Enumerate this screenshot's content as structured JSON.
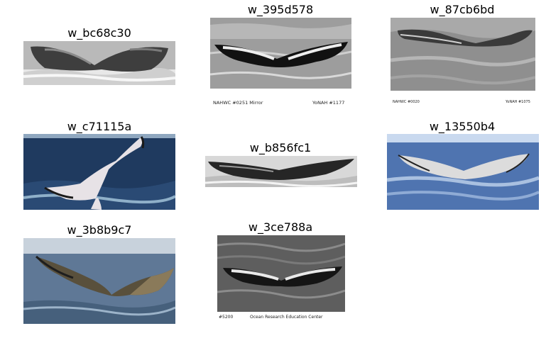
{
  "figure": {
    "panels": [
      {
        "id": "w_bc68c30",
        "title": "w_bc68c30",
        "palette": "grayscale",
        "captions": []
      },
      {
        "id": "w_395d578",
        "title": "w_395d578",
        "palette": "grayscale",
        "captions": [
          "NAHWC #0251  Mirror",
          "YoNAH #1177"
        ]
      },
      {
        "id": "w_87cb6bd",
        "title": "w_87cb6bd",
        "palette": "grayscale",
        "captions": [
          "NAHWC #0020",
          "YoNAH #1075"
        ]
      },
      {
        "id": "w_c71115a",
        "title": "w_c71115a",
        "palette": "color",
        "captions": []
      },
      {
        "id": "w_b856fc1",
        "title": "w_b856fc1",
        "palette": "grayscale",
        "captions": []
      },
      {
        "id": "w_13550b4",
        "title": "w_13550b4",
        "palette": "color",
        "captions": []
      },
      {
        "id": "w_3b8b9c7",
        "title": "w_3b8b9c7",
        "palette": "color",
        "captions": []
      },
      {
        "id": "w_3ce788a",
        "title": "w_3ce788a",
        "palette": "grayscale",
        "captions": [
          "#5200",
          "Ocean Research Education Center"
        ]
      }
    ]
  }
}
